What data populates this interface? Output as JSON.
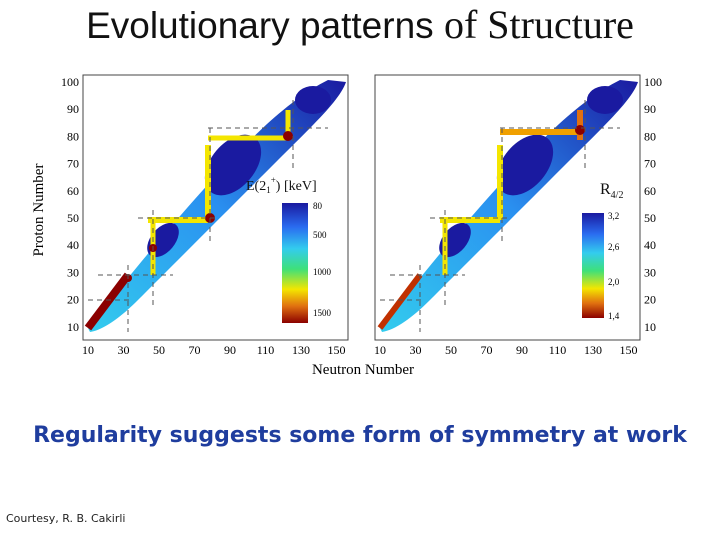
{
  "title": {
    "part1": "Evolutionary patterns",
    "part2": "of Structure"
  },
  "figure": {
    "x_axis_label": "Neutron Number",
    "y_axis_label": "Proton Number",
    "x_ticks": [
      "10",
      "30",
      "50",
      "70",
      "90",
      "110",
      "130",
      "150"
    ],
    "y_ticks": [
      "100",
      "90",
      "80",
      "70",
      "60",
      "50",
      "40",
      "30",
      "20",
      "10"
    ],
    "left_panel": {
      "label_main": "E(2",
      "label_sub": "1",
      "label_sup": "+",
      "label_unit": ") [keV]",
      "colorbar_ticks": [
        "80",
        "500",
        "1000",
        "1500"
      ]
    },
    "right_panel": {
      "label_main": "R",
      "label_sub": "4/2",
      "colorbar_ticks": [
        "3,2",
        "2,6",
        "2,0",
        "1,4"
      ]
    }
  },
  "caption": "Regularity suggests some form of symmetry at work",
  "credit": "Courtesy, R. B. Cakirli",
  "colors": {
    "caption": "#1f3d9e",
    "dark_blue": "#1a1aa0",
    "cyan": "#33ccee",
    "yellow": "#f4e600",
    "dark_red": "#8b0000"
  }
}
